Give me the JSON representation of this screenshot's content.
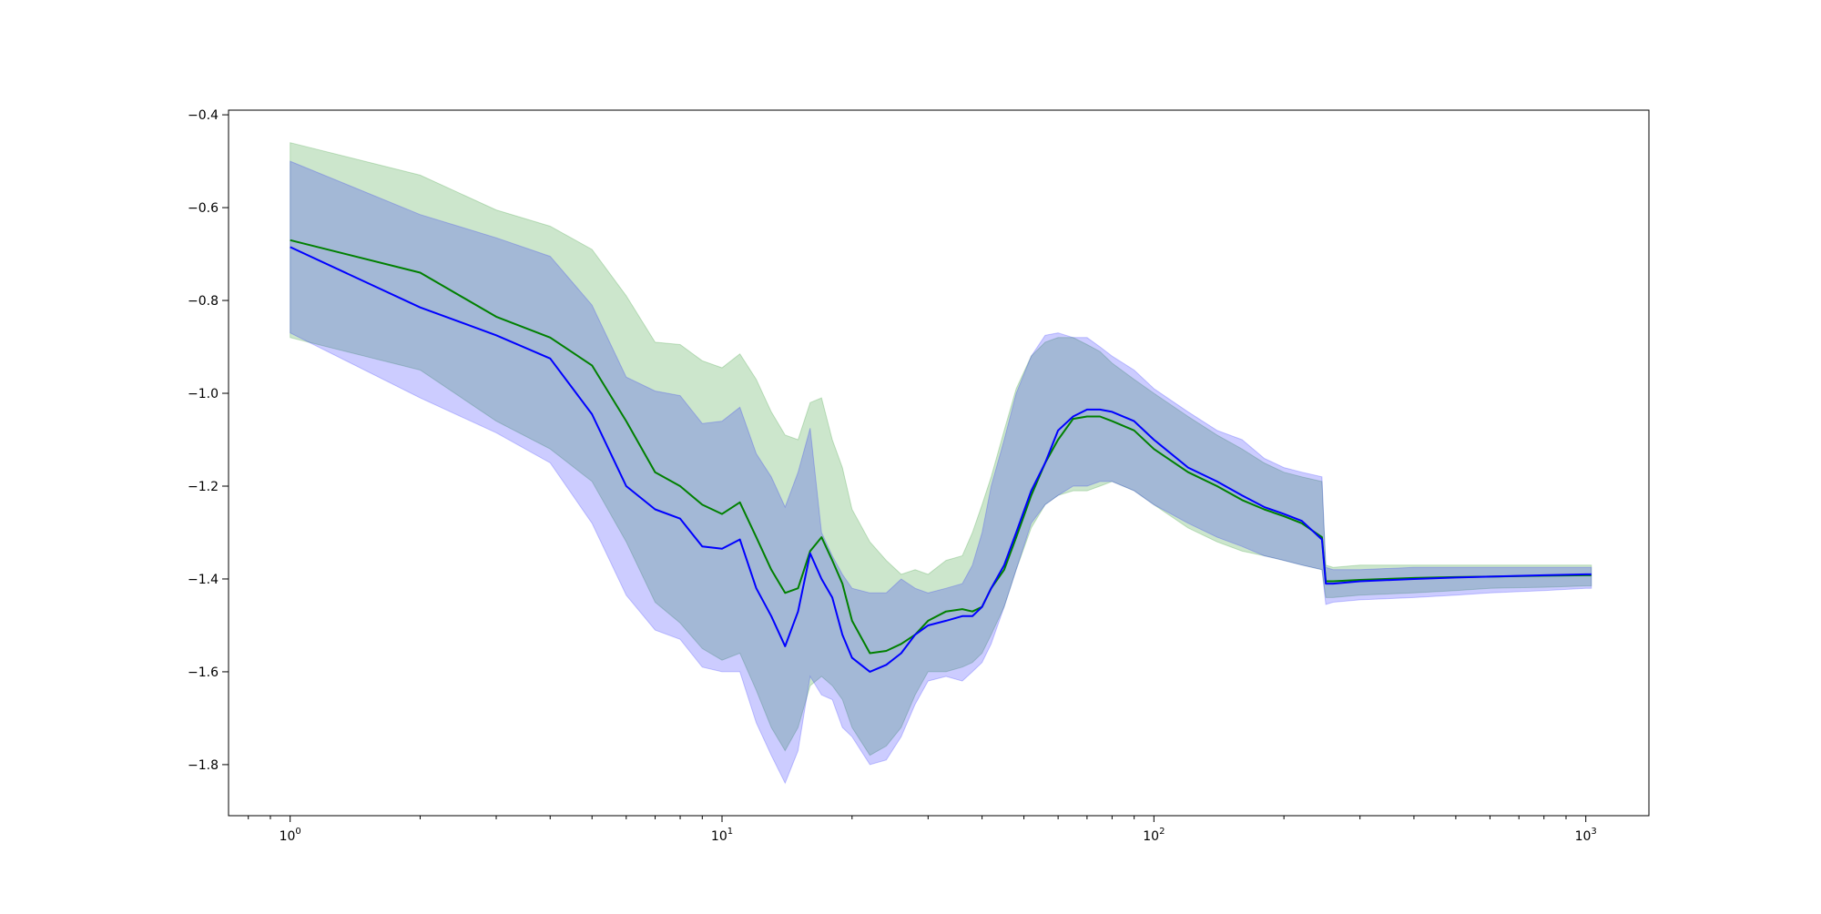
{
  "chart_data": {
    "type": "line",
    "title": "",
    "xlabel": "",
    "ylabel": "",
    "xscale": "log",
    "xlim": [
      0.72,
      1400
    ],
    "ylim": [
      -1.91,
      -0.39
    ],
    "grid": false,
    "legend": "none",
    "x_ticks": [
      {
        "base": "10",
        "exp": "0",
        "value": 1
      },
      {
        "base": "10",
        "exp": "1",
        "value": 10
      },
      {
        "base": "10",
        "exp": "2",
        "value": 100
      },
      {
        "base": "10",
        "exp": "3",
        "value": 1000
      }
    ],
    "y_ticks": [
      {
        "label": "-0.4",
        "value": -0.4
      },
      {
        "label": "-0.6",
        "value": -0.6
      },
      {
        "label": "-0.8",
        "value": -0.8
      },
      {
        "label": "-1.0",
        "value": -1.0
      },
      {
        "label": "-1.2",
        "value": -1.2
      },
      {
        "label": "-1.4",
        "value": -1.4
      },
      {
        "label": "-1.6",
        "value": -1.6
      },
      {
        "label": "-1.8",
        "value": -1.8
      }
    ],
    "series": [
      {
        "color": "#008000",
        "band_color": "#008000",
        "band_opacity": 0.2,
        "x": [
          1,
          2,
          3,
          4,
          5,
          6,
          7,
          8,
          9,
          10,
          11,
          12,
          13,
          14,
          15,
          16,
          17,
          18,
          19,
          20,
          22,
          24,
          26,
          28,
          30,
          33,
          36,
          38,
          40,
          42,
          45,
          48,
          52,
          56,
          60,
          65,
          70,
          75,
          80,
          90,
          100,
          120,
          140,
          160,
          180,
          200,
          220,
          245,
          250,
          260,
          300,
          400,
          500,
          600,
          800,
          1000,
          1030
        ],
        "mean": [
          -0.67,
          -0.74,
          -0.835,
          -0.88,
          -0.94,
          -1.06,
          -1.17,
          -1.2,
          -1.24,
          -1.26,
          -1.235,
          -1.31,
          -1.38,
          -1.43,
          -1.42,
          -1.34,
          -1.31,
          -1.36,
          -1.41,
          -1.49,
          -1.56,
          -1.555,
          -1.54,
          -1.52,
          -1.49,
          -1.47,
          -1.465,
          -1.47,
          -1.46,
          -1.42,
          -1.38,
          -1.31,
          -1.22,
          -1.15,
          -1.1,
          -1.055,
          -1.05,
          -1.05,
          -1.06,
          -1.08,
          -1.12,
          -1.17,
          -1.2,
          -1.23,
          -1.25,
          -1.265,
          -1.28,
          -1.31,
          -1.405,
          -1.405,
          -1.402,
          -1.398,
          -1.396,
          -1.395,
          -1.393,
          -1.392,
          -1.392
        ],
        "upper": [
          -0.46,
          -0.53,
          -0.605,
          -0.64,
          -0.69,
          -0.79,
          -0.89,
          -0.895,
          -0.93,
          -0.945,
          -0.915,
          -0.97,
          -1.04,
          -1.09,
          -1.1,
          -1.02,
          -1.01,
          -1.1,
          -1.16,
          -1.25,
          -1.32,
          -1.36,
          -1.39,
          -1.38,
          -1.39,
          -1.36,
          -1.35,
          -1.3,
          -1.24,
          -1.18,
          -1.08,
          -0.99,
          -0.92,
          -0.89,
          -0.88,
          -0.88,
          -0.895,
          -0.91,
          -0.935,
          -0.97,
          -1.0,
          -1.05,
          -1.09,
          -1.12,
          -1.15,
          -1.17,
          -1.18,
          -1.19,
          -1.37,
          -1.375,
          -1.37,
          -1.37,
          -1.37,
          -1.37,
          -1.37,
          -1.37,
          -1.37
        ],
        "lower": [
          -0.88,
          -0.95,
          -1.06,
          -1.12,
          -1.19,
          -1.32,
          -1.45,
          -1.495,
          -1.55,
          -1.575,
          -1.56,
          -1.64,
          -1.72,
          -1.77,
          -1.72,
          -1.63,
          -1.61,
          -1.63,
          -1.66,
          -1.72,
          -1.78,
          -1.76,
          -1.72,
          -1.65,
          -1.6,
          -1.6,
          -1.59,
          -1.58,
          -1.56,
          -1.52,
          -1.46,
          -1.38,
          -1.29,
          -1.24,
          -1.22,
          -1.21,
          -1.21,
          -1.2,
          -1.19,
          -1.21,
          -1.24,
          -1.29,
          -1.32,
          -1.34,
          -1.35,
          -1.36,
          -1.37,
          -1.38,
          -1.44,
          -1.44,
          -1.435,
          -1.43,
          -1.425,
          -1.42,
          -1.418,
          -1.415,
          -1.415
        ]
      },
      {
        "color": "#0000ff",
        "band_color": "#0000ff",
        "band_opacity": 0.2,
        "x": [
          1,
          2,
          3,
          4,
          5,
          6,
          7,
          8,
          9,
          10,
          11,
          12,
          13,
          14,
          15,
          16,
          17,
          18,
          19,
          20,
          22,
          24,
          26,
          28,
          30,
          33,
          36,
          38,
          40,
          42,
          45,
          48,
          52,
          56,
          60,
          65,
          70,
          75,
          80,
          90,
          100,
          120,
          140,
          160,
          180,
          200,
          220,
          245,
          250,
          260,
          300,
          400,
          500,
          600,
          800,
          1000,
          1030
        ],
        "mean": [
          -0.685,
          -0.815,
          -0.875,
          -0.925,
          -1.045,
          -1.2,
          -1.25,
          -1.27,
          -1.33,
          -1.335,
          -1.315,
          -1.42,
          -1.48,
          -1.545,
          -1.47,
          -1.345,
          -1.4,
          -1.44,
          -1.52,
          -1.57,
          -1.6,
          -1.585,
          -1.56,
          -1.52,
          -1.5,
          -1.49,
          -1.48,
          -1.48,
          -1.46,
          -1.42,
          -1.37,
          -1.3,
          -1.21,
          -1.15,
          -1.08,
          -1.05,
          -1.035,
          -1.035,
          -1.04,
          -1.06,
          -1.1,
          -1.16,
          -1.19,
          -1.22,
          -1.245,
          -1.26,
          -1.275,
          -1.315,
          -1.41,
          -1.41,
          -1.405,
          -1.4,
          -1.397,
          -1.395,
          -1.392,
          -1.39,
          -1.39
        ],
        "upper": [
          -0.5,
          -0.615,
          -0.665,
          -0.705,
          -0.81,
          -0.965,
          -0.995,
          -1.005,
          -1.065,
          -1.06,
          -1.03,
          -1.13,
          -1.18,
          -1.245,
          -1.17,
          -1.075,
          -1.3,
          -1.35,
          -1.39,
          -1.42,
          -1.43,
          -1.43,
          -1.4,
          -1.42,
          -1.43,
          -1.42,
          -1.41,
          -1.37,
          -1.3,
          -1.2,
          -1.1,
          -1.0,
          -0.92,
          -0.875,
          -0.87,
          -0.88,
          -0.88,
          -0.9,
          -0.92,
          -0.95,
          -0.99,
          -1.04,
          -1.08,
          -1.1,
          -1.14,
          -1.16,
          -1.17,
          -1.18,
          -1.375,
          -1.38,
          -1.38,
          -1.375,
          -1.375,
          -1.375,
          -1.375,
          -1.375,
          -1.375
        ],
        "lower": [
          -0.87,
          -1.01,
          -1.085,
          -1.15,
          -1.28,
          -1.435,
          -1.51,
          -1.53,
          -1.59,
          -1.6,
          -1.6,
          -1.71,
          -1.78,
          -1.84,
          -1.77,
          -1.61,
          -1.65,
          -1.66,
          -1.72,
          -1.74,
          -1.8,
          -1.79,
          -1.74,
          -1.67,
          -1.62,
          -1.61,
          -1.62,
          -1.6,
          -1.58,
          -1.54,
          -1.46,
          -1.38,
          -1.28,
          -1.24,
          -1.22,
          -1.2,
          -1.2,
          -1.19,
          -1.19,
          -1.21,
          -1.24,
          -1.28,
          -1.31,
          -1.33,
          -1.35,
          -1.36,
          -1.37,
          -1.38,
          -1.455,
          -1.45,
          -1.445,
          -1.44,
          -1.435,
          -1.43,
          -1.425,
          -1.42,
          -1.42
        ]
      }
    ]
  }
}
